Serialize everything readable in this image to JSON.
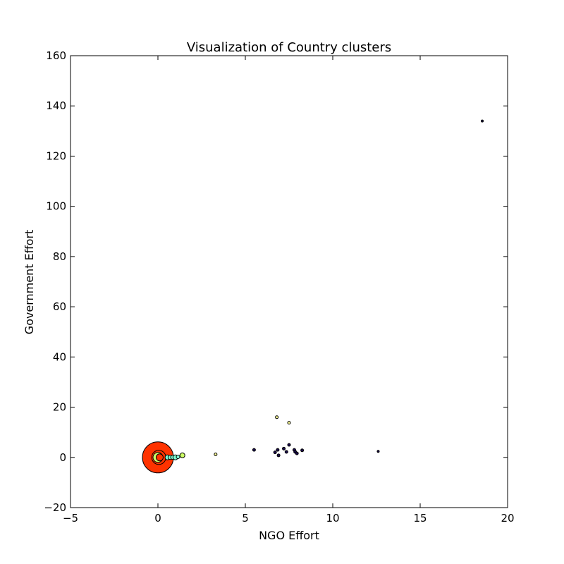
{
  "chart_data": {
    "type": "scatter",
    "title": "Visualization of Country clusters",
    "xlabel": "NGO Effort",
    "ylabel": "Government Effort",
    "xlim": [
      -5,
      20
    ],
    "ylim": [
      -20,
      160
    ],
    "xticks": [
      -5,
      0,
      5,
      10,
      15,
      20
    ],
    "yticks": [
      -20,
      0,
      20,
      40,
      60,
      80,
      100,
      120,
      140,
      160
    ],
    "grid": false,
    "legend": "none",
    "points": [
      {
        "x": 0.0,
        "y": 0.0,
        "size": 22,
        "color": "#ff3300"
      },
      {
        "x": 0.05,
        "y": 0.0,
        "size": 10,
        "color": "#ff3300"
      },
      {
        "x": 0.0,
        "y": 0.0,
        "size": 7,
        "color": "#ccff66"
      },
      {
        "x": 0.1,
        "y": 0.0,
        "size": 5,
        "color": "#ff3300"
      },
      {
        "x": 0.55,
        "y": 0.0,
        "size": 3.5,
        "color": "#7fffd4"
      },
      {
        "x": 0.7,
        "y": 0.0,
        "size": 3,
        "color": "#7fffd4"
      },
      {
        "x": 0.85,
        "y": 0.0,
        "size": 3,
        "color": "#7fffd4"
      },
      {
        "x": 1.0,
        "y": 0.0,
        "size": 3.5,
        "color": "#7fffd4"
      },
      {
        "x": 1.15,
        "y": 0.2,
        "size": 2.5,
        "color": "#7fffd4"
      },
      {
        "x": 1.4,
        "y": 0.8,
        "size": 3.5,
        "color": "#ccff66"
      },
      {
        "x": 3.3,
        "y": 1.2,
        "size": 2,
        "color": "#ffff99"
      },
      {
        "x": 5.5,
        "y": 3.0,
        "size": 2,
        "color": "#1a0a4d"
      },
      {
        "x": 6.7,
        "y": 2.0,
        "size": 2,
        "color": "#1a0a4d"
      },
      {
        "x": 6.85,
        "y": 3.0,
        "size": 2,
        "color": "#1a0a4d"
      },
      {
        "x": 6.9,
        "y": 0.8,
        "size": 2,
        "color": "#1a0a4d"
      },
      {
        "x": 6.8,
        "y": 16.0,
        "size": 2,
        "color": "#ffff99"
      },
      {
        "x": 7.2,
        "y": 3.5,
        "size": 2,
        "color": "#1a0a4d"
      },
      {
        "x": 7.35,
        "y": 2.2,
        "size": 2,
        "color": "#1a0a4d"
      },
      {
        "x": 7.5,
        "y": 5.0,
        "size": 2,
        "color": "#1a0a4d"
      },
      {
        "x": 7.5,
        "y": 13.8,
        "size": 2,
        "color": "#ffff99"
      },
      {
        "x": 7.8,
        "y": 3.0,
        "size": 2,
        "color": "#1a0a4d"
      },
      {
        "x": 7.85,
        "y": 2.2,
        "size": 2,
        "color": "#1a0a4d"
      },
      {
        "x": 7.95,
        "y": 1.6,
        "size": 2,
        "color": "#1a0a4d"
      },
      {
        "x": 8.25,
        "y": 2.8,
        "size": 2,
        "color": "#1a0a4d"
      },
      {
        "x": 12.6,
        "y": 2.4,
        "size": 1.5,
        "color": "#1a0a4d"
      },
      {
        "x": 18.55,
        "y": 134.0,
        "size": 1.5,
        "color": "#1a0a4d"
      }
    ]
  }
}
